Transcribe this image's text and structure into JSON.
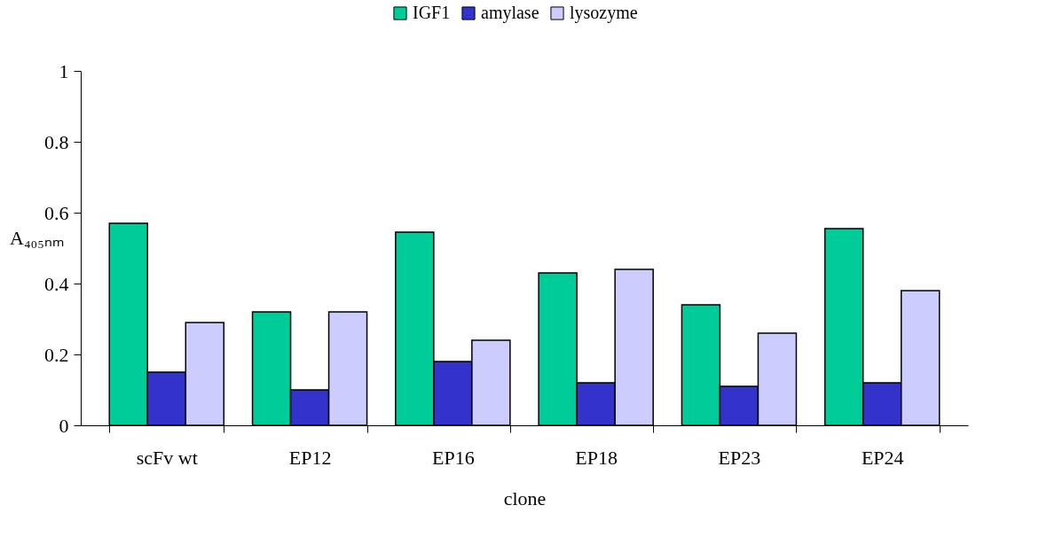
{
  "chart_data": {
    "type": "bar",
    "xlabel": "clone",
    "ylabel": "A₄₀₅ₙₘ",
    "categories": [
      "scFv wt",
      "EP12",
      "EP16",
      "EP18",
      "EP23",
      "EP24"
    ],
    "series": [
      {
        "name": "IGF1",
        "color": "#00cc99",
        "values": [
          0.57,
          0.32,
          0.545,
          0.43,
          0.34,
          0.555
        ]
      },
      {
        "name": "amylase",
        "color": "#3333cc",
        "values": [
          0.15,
          0.1,
          0.18,
          0.12,
          0.11,
          0.12
        ]
      },
      {
        "name": "lysozyme",
        "color": "#ccccff",
        "values": [
          0.29,
          0.32,
          0.24,
          0.44,
          0.26,
          0.38
        ]
      }
    ],
    "ylim": [
      0,
      1
    ],
    "yticks": [
      0,
      0.2,
      0.4,
      0.6,
      0.8,
      1
    ],
    "grid": false,
    "legend": "top"
  }
}
